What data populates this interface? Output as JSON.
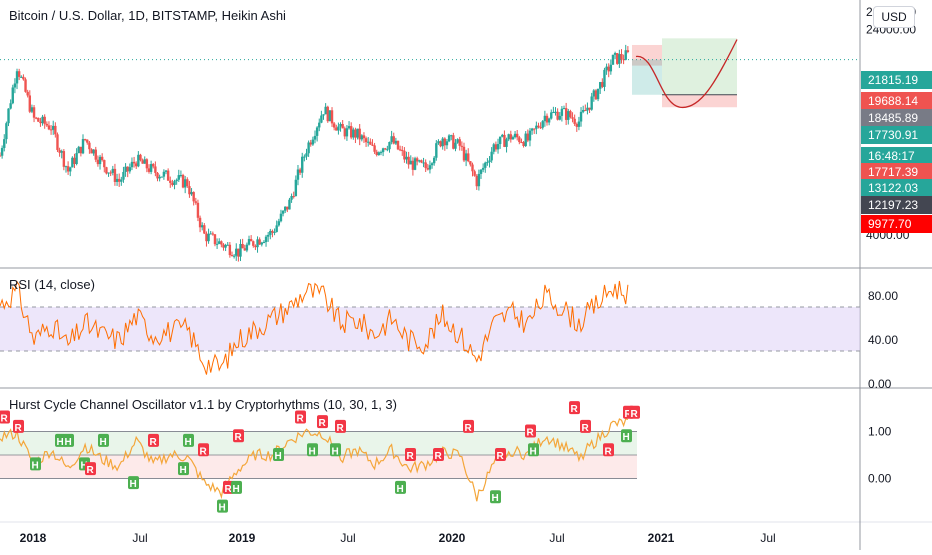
{
  "header": {
    "title": "Bitcoin / U.S. Dollar, 1D, BITSTAMP, Heikin Ashi",
    "currency_button": "USD"
  },
  "price_axis": {
    "ticks": [
      "28000.00",
      "24000.00",
      "4000.00"
    ],
    "badges": [
      {
        "label": "21815.19",
        "color": "#26a69a"
      },
      {
        "label": "19688.14",
        "color": "#ef5350"
      },
      {
        "label": "18485.89",
        "color": "#787b86"
      },
      {
        "label": "17730.91",
        "color": "#26a69a"
      },
      {
        "label": "16:48:17",
        "color": "#26a69a"
      },
      {
        "label": "17717.39",
        "color": "#ef5350"
      },
      {
        "label": "13122.03",
        "color": "#26a69a"
      },
      {
        "label": "12197.23",
        "color": "#434651"
      },
      {
        "label": "9977.70",
        "color": "#ff0000"
      }
    ]
  },
  "rsi": {
    "title": "RSI (14, close)",
    "ticks": [
      "80.00",
      "40.00",
      "0.00"
    ],
    "line_color": "#ff6d00",
    "band_color": "#e1d5f7"
  },
  "hurst": {
    "title": "Hurst Cycle Channel Oscillator v1.1 by Cryptorhythms (10, 30, 1, 3)",
    "ticks": [
      "1.00",
      "0.00"
    ],
    "marker_labels": {
      "high": "H",
      "reversal": "R"
    },
    "colors": {
      "high": "#4caf50",
      "reversal": "#f23645",
      "line": "#f4a63a"
    }
  },
  "time_axis": {
    "labels": [
      "2018",
      "Jul",
      "2019",
      "Jul",
      "2020",
      "Jul",
      "2021",
      "Jul"
    ]
  },
  "chart_data": [
    {
      "type": "candlestick",
      "title": "Bitcoin / U.S. Dollar, 1D, BITSTAMP, Heikin Ashi",
      "x": [
        "2017-11",
        "2017-12",
        "2018-01",
        "2018-02",
        "2018-03",
        "2018-04",
        "2018-05",
        "2018-06",
        "2018-07",
        "2018-08",
        "2018-09",
        "2018-10",
        "2018-11",
        "2018-12",
        "2019-01",
        "2019-02",
        "2019-03",
        "2019-04",
        "2019-05",
        "2019-06",
        "2019-07",
        "2019-08",
        "2019-09",
        "2019-10",
        "2019-11",
        "2019-12",
        "2020-01",
        "2020-02",
        "2020-03",
        "2020-04",
        "2020-05",
        "2020-06",
        "2020-07",
        "2020-08",
        "2020-09",
        "2020-10",
        "2020-11",
        "2020-12"
      ],
      "series": [
        {
          "name": "close",
          "values": [
            8000,
            17500,
            11000,
            10300,
            7000,
            9200,
            7500,
            6400,
            7700,
            7000,
            6600,
            6300,
            4000,
            3700,
            3450,
            3800,
            4100,
            5300,
            8500,
            12000,
            10000,
            9600,
            8300,
            9100,
            7500,
            7200,
            9400,
            8700,
            6400,
            8700,
            9450,
            9150,
            11300,
            11700,
            10800,
            13800,
            18500,
            19300
          ]
        }
      ],
      "ylim": [
        3000,
        29000
      ],
      "scale": "log",
      "annotations": {
        "current_price": 18485.89,
        "target": 21815.19,
        "stop": 12197.23,
        "projection": "curve dipping to ~12000 then rising above 21000 in 2021"
      }
    },
    {
      "type": "line",
      "title": "RSI (14, close)",
      "ylim": [
        0,
        100
      ],
      "bands": [
        30,
        70
      ],
      "series": [
        {
          "name": "RSI",
          "values": [
            72,
            85,
            40,
            55,
            35,
            55,
            45,
            40,
            62,
            45,
            48,
            50,
            20,
            15,
            40,
            50,
            60,
            70,
            85,
            80,
            55,
            58,
            45,
            60,
            40,
            38,
            62,
            45,
            22,
            55,
            65,
            55,
            80,
            70,
            55,
            72,
            88,
            82
          ]
        }
      ]
    },
    {
      "type": "line",
      "title": "Hurst Cycle Channel Oscillator v1.1 by Cryptorhythms (10, 30, 1, 3)",
      "ylim": [
        -0.8,
        1.8
      ],
      "bands": [
        0,
        0.5,
        1
      ],
      "series": [
        {
          "name": "oscillator",
          "values": [
            0.9,
            0.95,
            0.3,
            0.6,
            0.2,
            0.7,
            0.4,
            0.25,
            0.8,
            0.3,
            0.5,
            0.45,
            -0.1,
            -0.3,
            0.2,
            0.5,
            0.5,
            0.8,
            1.0,
            0.95,
            0.45,
            0.6,
            0.3,
            0.6,
            0.2,
            0.3,
            0.55,
            0.5,
            -0.4,
            0.3,
            0.6,
            0.5,
            0.9,
            0.7,
            0.45,
            0.8,
            1.15,
            1.2
          ]
        }
      ]
    }
  ]
}
